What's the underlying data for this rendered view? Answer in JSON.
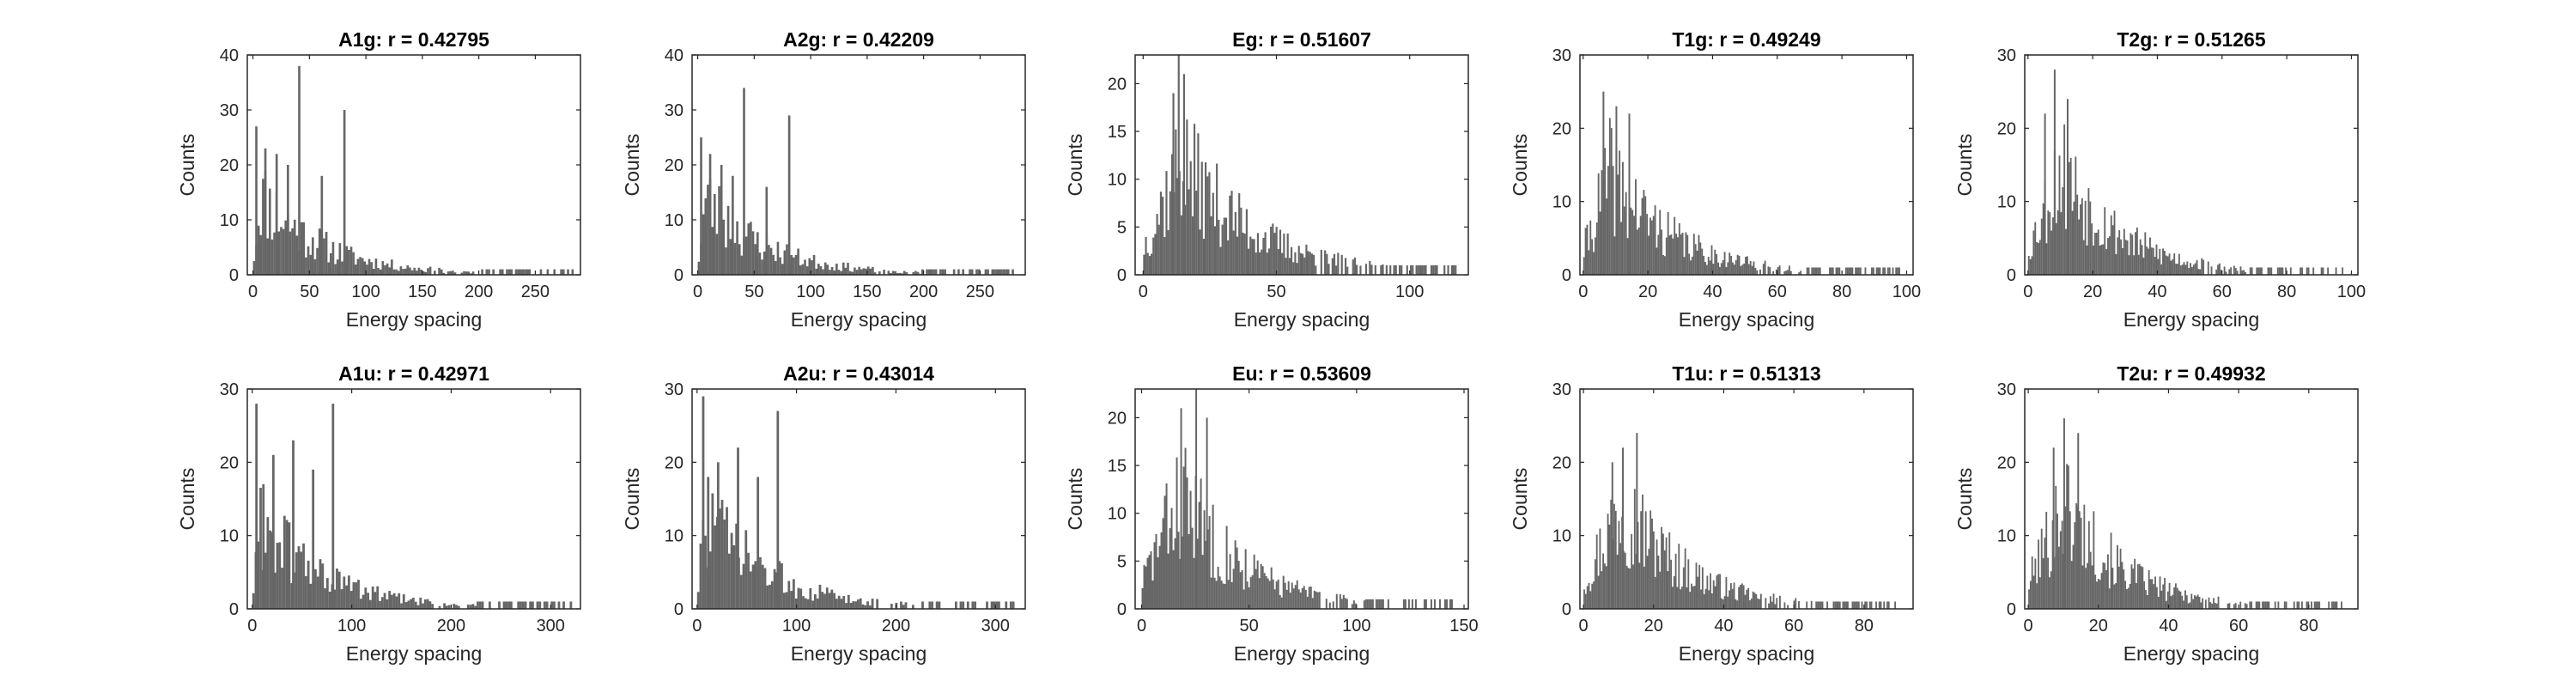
{
  "colors": {
    "bar": "#666666",
    "axis": "#262626",
    "background": "#ffffff"
  },
  "chart_data": [
    {
      "type": "bar",
      "title": "A1g: r = 0.42795",
      "xlabel": "Energy spacing",
      "ylabel": "Counts",
      "xlim": [
        -5,
        290
      ],
      "ylim": [
        0,
        40
      ],
      "xticks": [
        0,
        50,
        100,
        150,
        200,
        250
      ],
      "yticks": [
        0,
        10,
        20,
        30,
        40
      ],
      "bin_width": 2,
      "distribution": {
        "peak": 17,
        "peak_x": 6,
        "decay": 55,
        "max_x": 285,
        "seed": 11
      },
      "spikes": [
        [
          2,
          27
        ],
        [
          40,
          38
        ],
        [
          80,
          30
        ],
        [
          10,
          23
        ],
        [
          20,
          22
        ],
        [
          30,
          20
        ],
        [
          60,
          18
        ]
      ]
    },
    {
      "type": "bar",
      "title": "A2g: r = 0.42209",
      "xlabel": "Energy spacing",
      "ylabel": "Counts",
      "xlim": [
        -5,
        290
      ],
      "ylim": [
        0,
        40
      ],
      "xticks": [
        0,
        50,
        100,
        150,
        200,
        250
      ],
      "yticks": [
        0,
        10,
        20,
        30,
        40
      ],
      "bin_width": 2,
      "distribution": {
        "peak": 16,
        "peak_x": 6,
        "decay": 55,
        "max_x": 280,
        "seed": 23
      },
      "spikes": [
        [
          2,
          25
        ],
        [
          40,
          34
        ],
        [
          80,
          29
        ],
        [
          10,
          22
        ],
        [
          20,
          20
        ],
        [
          30,
          18
        ],
        [
          60,
          16
        ]
      ]
    },
    {
      "type": "bar",
      "title": "Eg: r = 0.51607",
      "xlabel": "Energy spacing",
      "ylabel": "Counts",
      "xlim": [
        -3,
        122
      ],
      "ylim": [
        0,
        23
      ],
      "xticks": [
        0,
        50,
        100
      ],
      "yticks": [
        0,
        5,
        10,
        15,
        20
      ],
      "bin_width": 0.7,
      "distribution": {
        "peak": 14,
        "peak_x": 14,
        "decay": 28,
        "max_x": 118,
        "seed": 37
      },
      "spikes": [
        [
          13,
          23
        ],
        [
          15,
          21
        ],
        [
          11,
          19
        ]
      ]
    },
    {
      "type": "bar",
      "title": "T1g: r = 0.49249",
      "xlabel": "Energy spacing",
      "ylabel": "Counts",
      "xlim": [
        -1,
        102
      ],
      "ylim": [
        0,
        30
      ],
      "xticks": [
        0,
        20,
        40,
        60,
        80,
        100
      ],
      "yticks": [
        0,
        10,
        20,
        30
      ],
      "bin_width": 0.5,
      "distribution": {
        "peak": 16,
        "peak_x": 8,
        "decay": 20,
        "max_x": 98,
        "seed": 41
      },
      "spikes": [
        [
          6,
          25
        ],
        [
          10,
          23
        ],
        [
          14,
          22
        ]
      ]
    },
    {
      "type": "bar",
      "title": "T2g: r = 0.51265",
      "xlabel": "Energy spacing",
      "ylabel": "Counts",
      "xlim": [
        -1,
        102
      ],
      "ylim": [
        0,
        30
      ],
      "xticks": [
        0,
        20,
        40,
        60,
        80,
        100
      ],
      "yticks": [
        0,
        10,
        20,
        30
      ],
      "bin_width": 0.5,
      "distribution": {
        "peak": 17,
        "peak_x": 10,
        "decay": 19,
        "max_x": 98,
        "seed": 53
      },
      "spikes": [
        [
          8,
          28
        ],
        [
          12,
          24
        ],
        [
          5,
          22
        ]
      ]
    },
    {
      "type": "bar",
      "title": "A1u: r = 0.42971",
      "xlabel": "Energy spacing",
      "ylabel": "Counts",
      "xlim": [
        -5,
        330
      ],
      "ylim": [
        0,
        30
      ],
      "xticks": [
        0,
        100,
        200,
        300
      ],
      "yticks": [
        0,
        10,
        20,
        30
      ],
      "bin_width": 2.4,
      "distribution": {
        "peak": 14,
        "peak_x": 8,
        "decay": 65,
        "max_x": 320,
        "seed": 61
      },
      "spikes": [
        [
          3,
          28
        ],
        [
          80,
          28
        ],
        [
          40,
          23
        ],
        [
          20,
          21
        ],
        [
          60,
          19
        ],
        [
          10,
          17
        ]
      ]
    },
    {
      "type": "bar",
      "title": "A2u: r = 0.43014",
      "xlabel": "Energy spacing",
      "ylabel": "Counts",
      "xlim": [
        -5,
        330
      ],
      "ylim": [
        0,
        30
      ],
      "xticks": [
        0,
        100,
        200,
        300
      ],
      "yticks": [
        0,
        10,
        20,
        30
      ],
      "bin_width": 2.4,
      "distribution": {
        "peak": 15,
        "peak_x": 8,
        "decay": 65,
        "max_x": 320,
        "seed": 73
      },
      "spikes": [
        [
          5,
          29
        ],
        [
          80,
          27
        ],
        [
          40,
          22
        ],
        [
          20,
          20
        ],
        [
          60,
          18
        ],
        [
          10,
          18
        ]
      ]
    },
    {
      "type": "bar",
      "title": "Eu: r = 0.53609",
      "xlabel": "Energy spacing",
      "ylabel": "Counts",
      "xlim": [
        -3,
        152
      ],
      "ylim": [
        0,
        23
      ],
      "xticks": [
        0,
        50,
        100,
        150
      ],
      "yticks": [
        0,
        5,
        10,
        15,
        20
      ],
      "bin_width": 0.8,
      "distribution": {
        "peak": 14,
        "peak_x": 18,
        "decay": 30,
        "max_x": 148,
        "seed": 83
      },
      "spikes": [
        [
          25,
          23
        ],
        [
          18,
          21
        ],
        [
          30,
          20
        ]
      ]
    },
    {
      "type": "bar",
      "title": "T1u: r = 0.51313",
      "xlabel": "Energy spacing",
      "ylabel": "Counts",
      "xlim": [
        -1,
        94
      ],
      "ylim": [
        0,
        30
      ],
      "xticks": [
        0,
        20,
        40,
        60,
        80
      ],
      "yticks": [
        0,
        10,
        20,
        30
      ],
      "bin_width": 0.45,
      "distribution": {
        "peak": 17,
        "peak_x": 11,
        "decay": 18,
        "max_x": 90,
        "seed": 97
      },
      "spikes": [
        [
          15,
          24
        ],
        [
          11,
          22
        ],
        [
          8,
          20
        ]
      ]
    },
    {
      "type": "bar",
      "title": "T2u: r = 0.49932",
      "xlabel": "Energy spacing",
      "ylabel": "Counts",
      "xlim": [
        -1,
        94
      ],
      "ylim": [
        0,
        30
      ],
      "xticks": [
        0,
        20,
        40,
        60,
        80
      ],
      "yticks": [
        0,
        10,
        20,
        30
      ],
      "bin_width": 0.45,
      "distribution": {
        "peak": 17,
        "peak_x": 10,
        "decay": 17,
        "max_x": 90,
        "seed": 101
      },
      "spikes": [
        [
          10,
          26
        ],
        [
          14,
          24
        ],
        [
          7,
          22
        ]
      ]
    }
  ]
}
